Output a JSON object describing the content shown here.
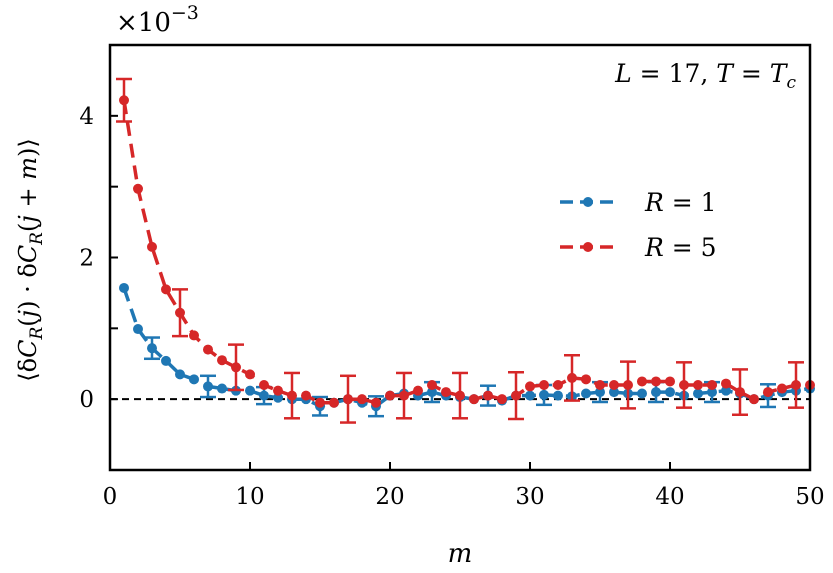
{
  "chart_data": {
    "type": "line",
    "title": "",
    "xlabel": "m",
    "ylabel": "⟨δC_R(j) · δC_R(j + m)⟩",
    "y_scale_label": "×10^−3",
    "xlim": [
      0,
      50
    ],
    "ylim": [
      -1,
      5
    ],
    "xticks": [
      0,
      10,
      20,
      30,
      40,
      50
    ],
    "yticks": [
      0,
      2,
      4
    ],
    "annotation": "L = 17,  T = T_c",
    "legend_position": "center-right",
    "reference_line": 0,
    "x": [
      1,
      2,
      3,
      4,
      5,
      6,
      7,
      8,
      9,
      10,
      11,
      12,
      13,
      14,
      15,
      16,
      17,
      18,
      19,
      20,
      21,
      22,
      23,
      24,
      25,
      26,
      27,
      28,
      29,
      30,
      31,
      32,
      33,
      34,
      35,
      36,
      37,
      38,
      39,
      40,
      41,
      42,
      43,
      44,
      45,
      46,
      47,
      48,
      49,
      50
    ],
    "series": [
      {
        "name": "R = 1",
        "color": "#1f77b4",
        "values": [
          1.57,
          0.99,
          0.72,
          0.54,
          0.35,
          0.28,
          0.18,
          0.15,
          0.12,
          0.12,
          0.05,
          0.02,
          0.0,
          0.0,
          -0.1,
          -0.05,
          0.0,
          -0.05,
          -0.1,
          0.05,
          0.08,
          0.05,
          0.1,
          0.05,
          0.03,
          0.0,
          0.05,
          -0.02,
          0.05,
          0.05,
          0.06,
          0.05,
          0.04,
          0.08,
          0.1,
          0.1,
          0.08,
          0.08,
          0.1,
          0.1,
          0.05,
          0.08,
          0.1,
          0.12,
          0.08,
          0.0,
          0.05,
          0.1,
          0.12,
          0.15
        ],
        "errors": [
          0,
          0,
          0.15,
          0,
          0,
          0,
          0.15,
          0,
          0,
          0,
          0.12,
          0,
          0,
          0,
          0.13,
          0,
          0,
          0,
          0.14,
          0,
          0,
          0,
          0.14,
          0,
          0,
          0,
          0.14,
          0,
          0,
          0,
          0.14,
          0,
          0,
          0,
          0.14,
          0,
          0,
          0,
          0.14,
          0,
          0,
          0,
          0.14,
          0,
          0,
          0,
          0.16,
          0,
          0,
          0
        ]
      },
      {
        "name": "R = 5",
        "color": "#d62728",
        "values": [
          4.22,
          2.97,
          2.15,
          1.55,
          1.22,
          0.9,
          0.7,
          0.55,
          0.45,
          0.35,
          0.2,
          0.12,
          0.05,
          0.05,
          -0.05,
          -0.05,
          0.0,
          0.0,
          -0.05,
          0.05,
          0.05,
          0.12,
          0.2,
          0.1,
          0.05,
          0.0,
          0.05,
          0.0,
          0.05,
          0.18,
          0.2,
          0.2,
          0.3,
          0.28,
          0.2,
          0.2,
          0.2,
          0.25,
          0.25,
          0.25,
          0.2,
          0.2,
          0.2,
          0.22,
          0.1,
          0.0,
          0.1,
          0.15,
          0.2,
          0.2
        ],
        "errors": [
          0.3,
          0,
          0,
          0,
          0.33,
          0,
          0,
          0,
          0.32,
          0,
          0,
          0,
          0.32,
          0,
          0,
          0,
          0.33,
          0,
          0,
          0,
          0.32,
          0,
          0,
          0,
          0.32,
          0,
          0,
          0,
          0.33,
          0,
          0,
          0,
          0.32,
          0,
          0,
          0,
          0.33,
          0,
          0,
          0,
          0.32,
          0,
          0,
          0,
          0.32,
          0,
          0,
          0,
          0.32,
          0
        ]
      }
    ]
  }
}
